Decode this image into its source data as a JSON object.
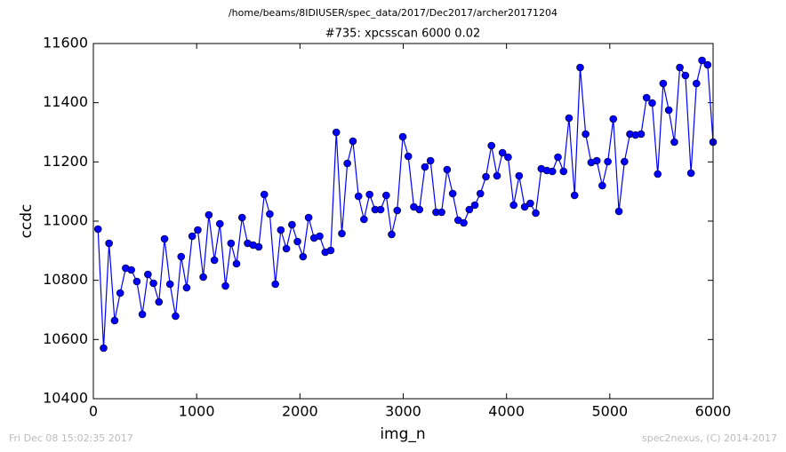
{
  "chart_data": {
    "type": "line",
    "suptitle": "/home/beams/8IDIUSER/spec_data/2017/Dec2017/archer20171204",
    "title": "#735: xpcsscan 6000 0.02",
    "xlabel": "img_n",
    "ylabel": "ccdc",
    "footer_left": "Fri Dec 08 15:02:35 2017",
    "footer_right": "spec2nexus, (C) 2014-2017",
    "xlim": [
      0,
      6000
    ],
    "xticks": [
      0,
      1000,
      2000,
      3000,
      4000,
      5000,
      6000
    ],
    "ylim": [
      10400,
      11600
    ],
    "yticks": [
      10400,
      10600,
      10800,
      11000,
      11200,
      11400,
      11600
    ],
    "grid": false,
    "x": [
      45,
      99,
      152,
      206,
      260,
      313,
      367,
      421,
      474,
      528,
      582,
      635,
      689,
      742,
      796,
      850,
      903,
      957,
      1011,
      1064,
      1118,
      1172,
      1225,
      1279,
      1333,
      1386,
      1440,
      1494,
      1547,
      1601,
      1655,
      1708,
      1762,
      1815,
      1869,
      1923,
      1976,
      2030,
      2084,
      2137,
      2191,
      2245,
      2298,
      2352,
      2406,
      2459,
      2513,
      2567,
      2620,
      2674,
      2728,
      2781,
      2835,
      2888,
      2942,
      2996,
      3049,
      3103,
      3157,
      3210,
      3264,
      3318,
      3371,
      3425,
      3479,
      3532,
      3586,
      3640,
      3693,
      3747,
      3801,
      3854,
      3908,
      3961,
      4015,
      4069,
      4122,
      4176,
      4230,
      4283,
      4337,
      4391,
      4444,
      4498,
      4552,
      4605,
      4659,
      4713,
      4766,
      4820,
      4874,
      4927,
      4981,
      5034,
      5088,
      5142,
      5195,
      5249,
      5303,
      5356,
      5410,
      5464,
      5517,
      5571,
      5625,
      5678,
      5732,
      5786,
      5839,
      5893,
      5947,
      6000
    ],
    "series": [
      {
        "color": "#0000ff",
        "values": [
          10973,
          10571,
          10925,
          10664,
          10757,
          10841,
          10835,
          10796,
          10685,
          10820,
          10790,
          10727,
          10940,
          10787,
          10679,
          10880,
          10775,
          10949,
          10970,
          10811,
          11021,
          10868,
          10991,
          10781,
          10925,
          10856,
          11012,
          10925,
          10919,
          10913,
          11090,
          11024,
          10787,
          10970,
          10907,
          10988,
          10931,
          10880,
          11012,
          10943,
          10949,
          10895,
          10901,
          11300,
          10958,
          11195,
          11270,
          11084,
          11006,
          11090,
          11039,
          11039,
          11087,
          10955,
          11036,
          11285,
          11219,
          11048,
          11039,
          11183,
          11204,
          11030,
          11030,
          11174,
          11093,
          11003,
          10994,
          11039,
          11054,
          11093,
          11150,
          11255,
          11153,
          11231,
          11216,
          11054,
          11153,
          11048,
          11060,
          11027,
          11177,
          11171,
          11168,
          11216,
          11168,
          11348,
          11087,
          11519,
          11294,
          11198,
          11204,
          11120,
          11201,
          11345,
          11033,
          11201,
          11294,
          11291,
          11294,
          11417,
          11399,
          11159,
          11465,
          11375,
          11267,
          11519,
          11492,
          11162,
          11465,
          11543,
          11528,
          11267
        ]
      }
    ]
  }
}
